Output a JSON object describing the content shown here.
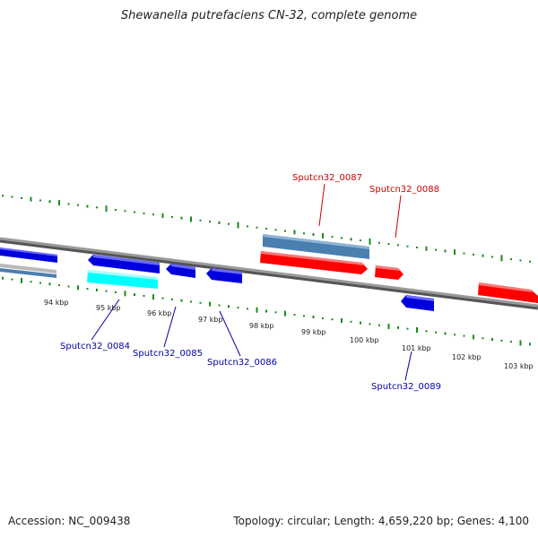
{
  "title": "Shewanella putrefaciens CN-32, complete genome",
  "footer": {
    "accession": "Accession: NC_009438",
    "summary": "Topology: circular; Length: 4,659,220 bp; Genes: 4,100"
  },
  "colors": {
    "forward_gene": "#ff0000",
    "reverse_gene": "#0000ee",
    "forward_label": "#cc0000",
    "reverse_label": "#0000aa",
    "forward_rna": "#4a7fb0",
    "reverse_rna": "#00ffff",
    "backbone": "#808080",
    "gc_ticks": "#1a8a1a"
  },
  "scale_labels": [
    "94 kbp",
    "95 kbp",
    "96 kbp",
    "97 kbp",
    "98 kbp",
    "99 kbp",
    "100 kbp",
    "101 kbp",
    "102 kbp",
    "103 kbp"
  ],
  "genes": [
    {
      "label": "Sputcn32_0084",
      "strand": "reverse"
    },
    {
      "label": "Sputcn32_0085",
      "strand": "reverse"
    },
    {
      "label": "Sputcn32_0086",
      "strand": "reverse"
    },
    {
      "label": "Sputcn32_0087",
      "strand": "forward"
    },
    {
      "label": "Sputcn32_0088",
      "strand": "forward"
    },
    {
      "label": "Sputcn32_0089",
      "strand": "reverse"
    }
  ]
}
